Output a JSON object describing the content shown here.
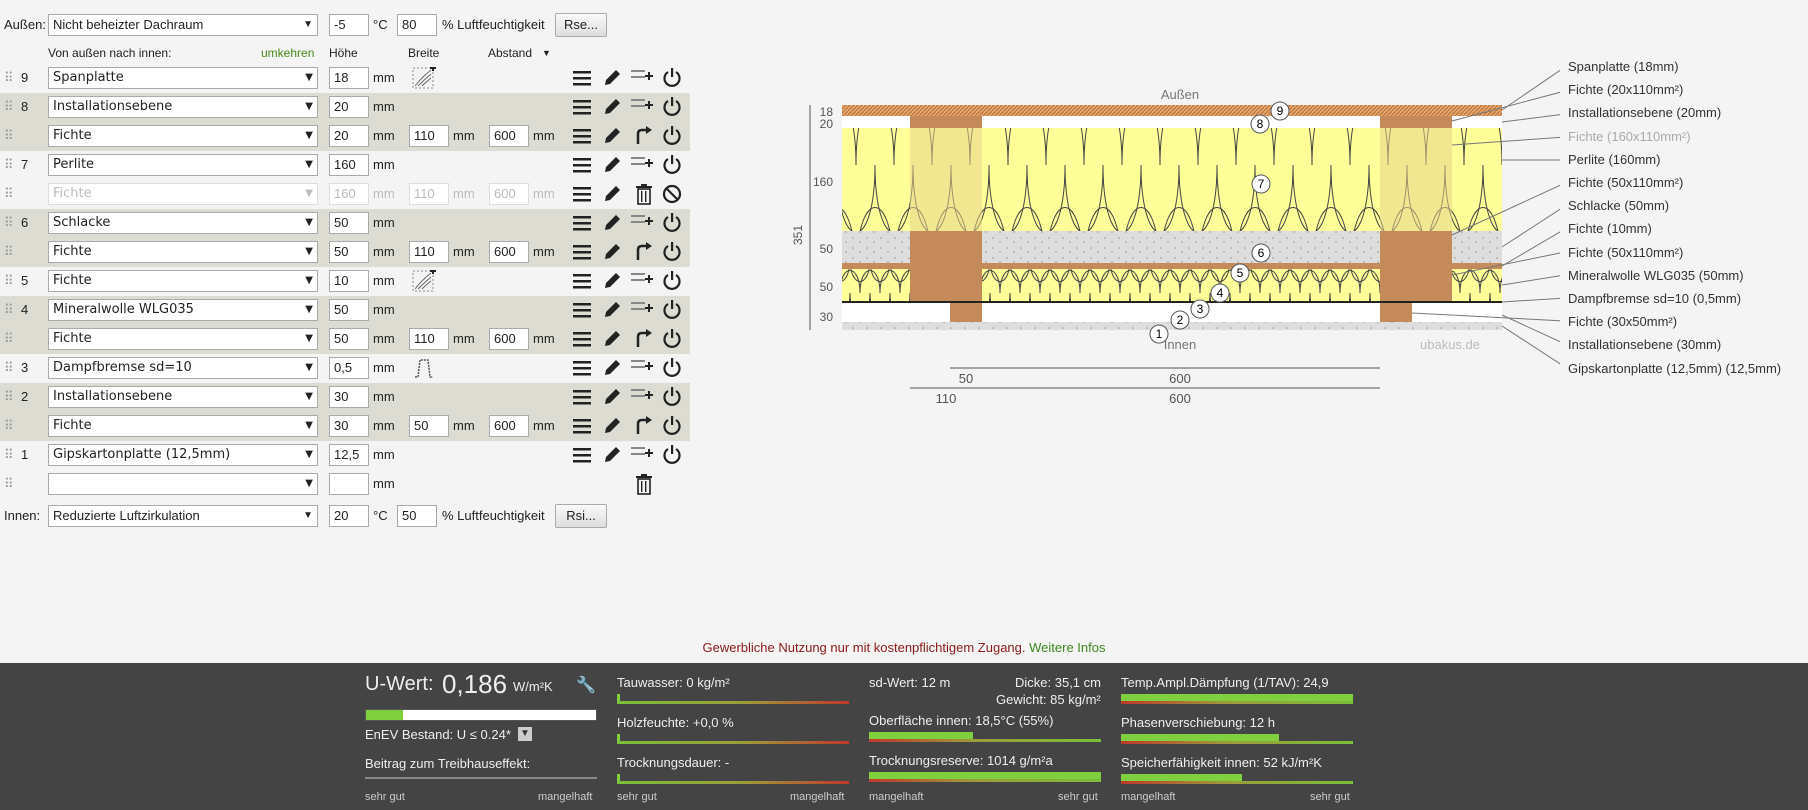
{
  "outside": {
    "label": "Außen:",
    "climate": "Nicht beheizter Dachraum",
    "temp": "-5",
    "temp_unit": "°C",
    "humidity": "80",
    "humidity_unit": "% Luftfeuchtigkeit",
    "rse_button": "Rse..."
  },
  "inside": {
    "label": "Innen:",
    "climate": "Reduzierte Luftzirkulation",
    "temp": "20",
    "temp_unit": "°C",
    "humidity": "50",
    "humidity_unit": "% Luftfeuchtigkeit",
    "rsi_button": "Rsi..."
  },
  "header": {
    "direction": "Von außen nach innen:",
    "reverse": "umkehren",
    "height": "Höhe",
    "width": "Breite",
    "spacing": "Abstand"
  },
  "unit_mm": "mm",
  "layers": [
    {
      "num": "9",
      "material": "Spanplatte",
      "height": "18",
      "extra": "wood-grain-icon",
      "side": "add-row-icon"
    },
    {
      "num": "8",
      "material": "Installationsebene",
      "height": "20",
      "extra": "",
      "side": "add-row-icon"
    },
    {
      "num": "",
      "material": "Fichte",
      "height": "20",
      "width": "110",
      "spacing": "600",
      "side": "rotate-icon"
    },
    {
      "num": "7",
      "material": "Perlite",
      "height": "160",
      "extra": "",
      "side": "add-row-icon"
    },
    {
      "num": "",
      "material": "Fichte",
      "height": "160",
      "width": "110",
      "spacing": "600",
      "side": "delete-icon",
      "disabled": true
    },
    {
      "num": "6",
      "material": "Schlacke",
      "height": "50",
      "extra": "",
      "side": "add-row-icon"
    },
    {
      "num": "",
      "material": "Fichte",
      "height": "50",
      "width": "110",
      "spacing": "600",
      "side": "rotate-icon"
    },
    {
      "num": "5",
      "material": "Fichte",
      "height": "10",
      "extra": "wood-grain-icon",
      "side": "add-row-icon"
    },
    {
      "num": "4",
      "material": "Mineralwolle WLG035",
      "height": "50",
      "extra": "",
      "side": "add-row-icon"
    },
    {
      "num": "",
      "material": "Fichte",
      "height": "50",
      "width": "110",
      "spacing": "600",
      "side": "rotate-icon"
    },
    {
      "num": "3",
      "material": "Dampfbremse sd=10",
      "height": "0,5",
      "extra": "vapor-barrier-icon",
      "side": "add-row-icon"
    },
    {
      "num": "2",
      "material": "Installationsebene",
      "height": "30",
      "extra": "",
      "side": "add-row-icon"
    },
    {
      "num": "",
      "material": "Fichte",
      "height": "30",
      "width": "50",
      "spacing": "600",
      "side": "rotate-icon"
    },
    {
      "num": "1",
      "material": "Gipskartonplatte (12,5mm)",
      "height": "12,5",
      "extra": "",
      "side": "add-row-icon"
    },
    {
      "num": "",
      "material": "",
      "height": "",
      "extra": "",
      "side": "trash-only",
      "empty": true
    }
  ],
  "diagram": {
    "top_label": "Außen",
    "bottom_label": "Innen",
    "watermark": "ubakus.de",
    "dims_left": [
      "18",
      "20",
      "160",
      "50",
      "50",
      "30"
    ],
    "total": "351",
    "dims_bottom_1": [
      "50",
      "600"
    ],
    "dims_bottom_2": [
      "110",
      "600"
    ],
    "bubbles": [
      "9",
      "8",
      "7",
      "6",
      "5",
      "4",
      "3",
      "2",
      "1"
    ],
    "legend": [
      "Spanplatte (18mm)",
      "Fichte (20x110mm²)",
      "Installationsebene (20mm)",
      "Fichte (160x110mm²)",
      "Perlite (160mm)",
      "Fichte (50x110mm²)",
      "Schlacke (50mm)",
      "Fichte (10mm)",
      "Fichte (50x110mm²)",
      "Mineralwolle WLG035 (50mm)",
      "Dampfbremse sd=10 (0,5mm)",
      "Fichte (30x50mm²)",
      "Installationsebene (30mm)",
      "Gipskartonplatte (12,5mm) (12,5mm)"
    ]
  },
  "notice": {
    "text": "Gewerbliche Nutzung nur mit kostenpflichtigem Zugang.",
    "link": "Weitere Infos"
  },
  "results": {
    "uwert_label": "U-Wert:",
    "uwert_value": "0,186",
    "uwert_unit": "W/m²K",
    "uwert_fill": 0.16,
    "enev": "EnEV Bestand: U ≤ 0.24*",
    "greenhouse": "Beitrag zum Treibhauseffekt:",
    "scale_good": "sehr gut",
    "scale_bad": "mangelhaft",
    "tauwasser": "Tauwasser: 0 kg/m²",
    "tauwasser_fill": 0.01,
    "holzfeuchte": "Holzfeuchte: +0,0 %",
    "holzfeuchte_fill": 0.01,
    "trocknungsdauer": "Trocknungsdauer: -",
    "trocknungsdauer_fill": 0.01,
    "sdwert": "sd-Wert: 12 m",
    "dicke": "Dicke: 35,1 cm",
    "gewicht": "Gewicht: 85 kg/m²",
    "oberflaeche": "Oberfläche innen: 18,5°C (55%)",
    "oberflaeche_fill": 0.45,
    "trocknungsreserve": "Trocknungsreserve: 1014 g/m²a",
    "trocknungsreserve_fill": 1.0,
    "temp_amp": "Temp.Ampl.Dämpfung (1/TAV): 24,9",
    "temp_amp_fill": 1.0,
    "phase": "Phasenverschiebung: 12 h",
    "phase_fill": 0.68,
    "speicher": "Speicherfähigkeit innen: 52 kJ/m²K",
    "speicher_fill": 0.52
  }
}
